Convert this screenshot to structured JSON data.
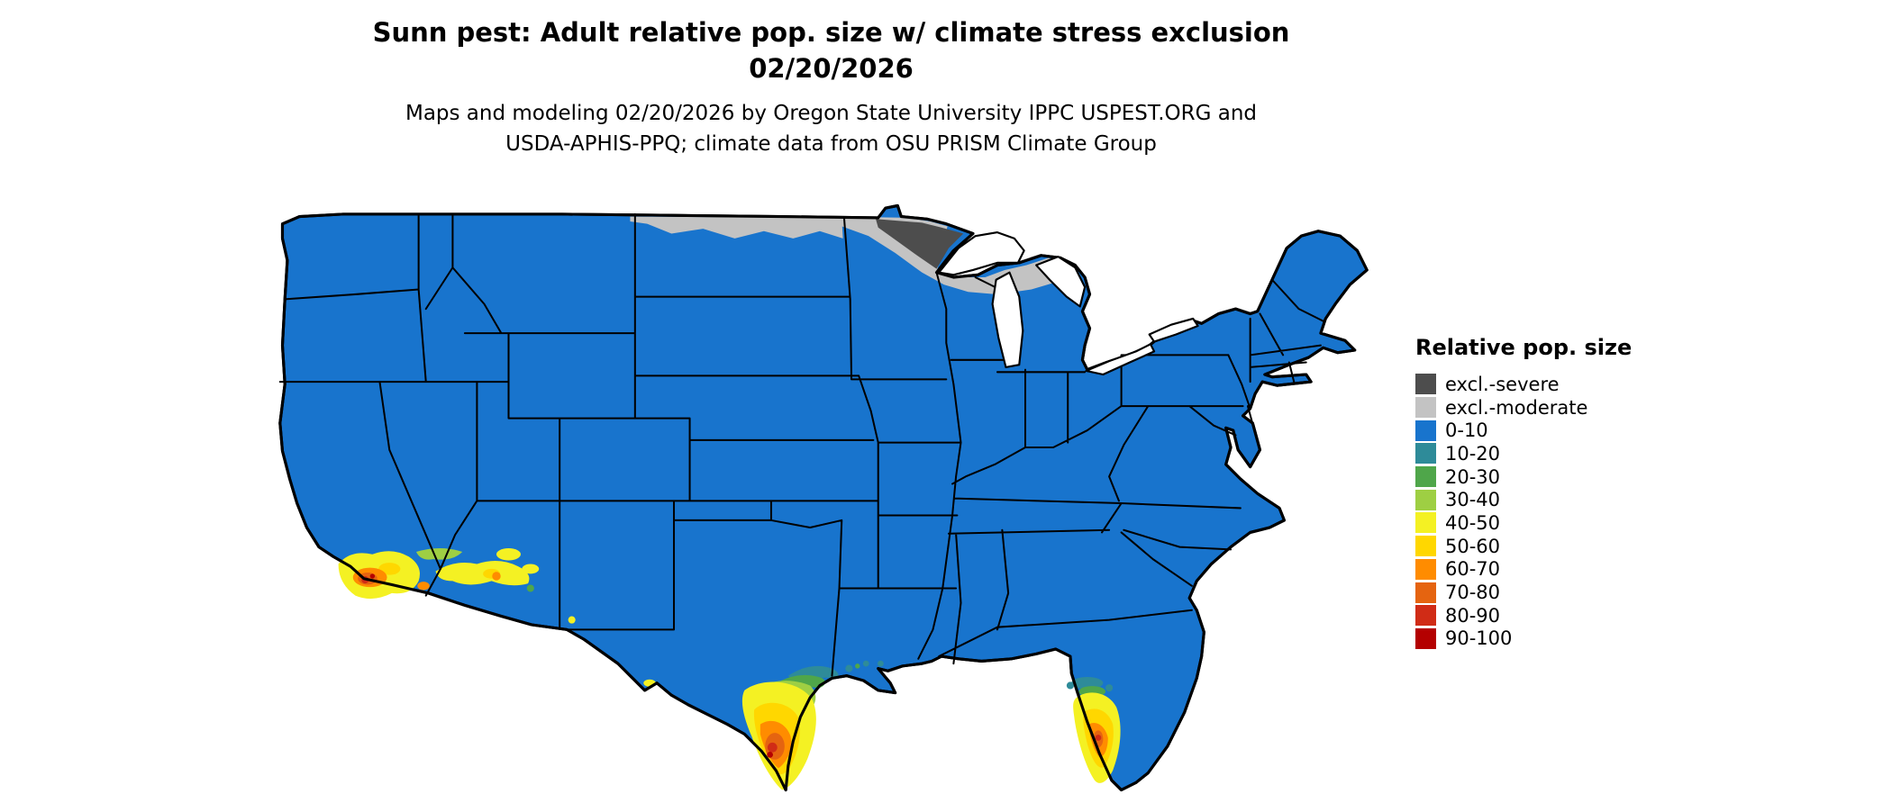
{
  "title": {
    "line1": "Sunn pest: Adult relative pop. size w/ climate stress exclusion",
    "line2": "02/20/2026"
  },
  "subtitle": {
    "line1": "Maps and modeling 02/20/2026 by Oregon State University IPPC USPEST.ORG and",
    "line2": "USDA-APHIS-PPQ; climate data from OSU PRISM Climate Group"
  },
  "legend": {
    "title": "Relative pop. size",
    "entries": [
      {
        "label": "excl.-severe",
        "color": "#4d4d4d"
      },
      {
        "label": "excl.-moderate",
        "color": "#c3c3c3"
      },
      {
        "label": "0-10",
        "color": "#1874cd"
      },
      {
        "label": "10-20",
        "color": "#2e8b99"
      },
      {
        "label": "20-30",
        "color": "#4fa64a"
      },
      {
        "label": "30-40",
        "color": "#9ecf43"
      },
      {
        "label": "40-50",
        "color": "#f4f123"
      },
      {
        "label": "50-60",
        "color": "#ffd700"
      },
      {
        "label": "60-70",
        "color": "#ff8c00"
      },
      {
        "label": "70-80",
        "color": "#e56410"
      },
      {
        "label": "80-90",
        "color": "#d02c16"
      },
      {
        "label": "90-100",
        "color": "#b40000"
      }
    ]
  },
  "map": {
    "region": "Contiguous United States",
    "background": "#ffffff",
    "state_border_color": "#000000",
    "base_fill_category": "0-10",
    "features": [
      {
        "area": "northeastern Minnesota (Arrowhead)",
        "category": "excl.-severe"
      },
      {
        "area": "northern Minnesota / North Dakota border / northern Wisconsin / upper Michigan",
        "category": "excl.-moderate"
      },
      {
        "area": "southern California",
        "categories": [
          "40-50",
          "50-60",
          "60-70",
          "70-80",
          "80-90",
          "90-100"
        ]
      },
      {
        "area": "southern and central Arizona",
        "categories": [
          "20-30",
          "40-50",
          "50-60",
          "60-70"
        ]
      },
      {
        "area": "southern Texas and Gulf coast",
        "categories": [
          "10-20",
          "20-30",
          "30-40",
          "40-50",
          "50-60",
          "60-70",
          "70-80",
          "80-90",
          "90-100"
        ]
      },
      {
        "area": "southern Florida",
        "categories": [
          "10-20",
          "20-30",
          "30-40",
          "40-50",
          "50-60",
          "60-70",
          "70-80",
          "80-90"
        ]
      },
      {
        "area": "remainder of contiguous US",
        "category": "0-10"
      }
    ]
  }
}
